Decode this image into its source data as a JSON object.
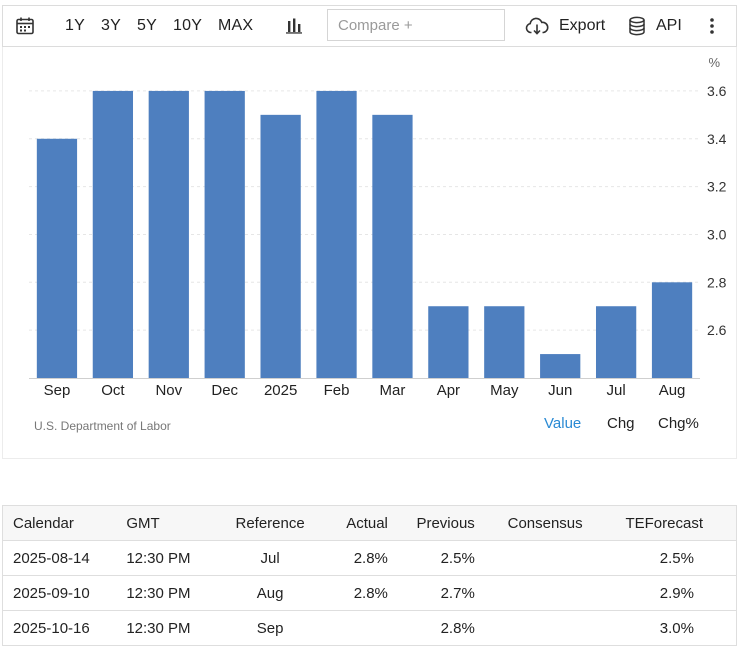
{
  "toolbar": {
    "ranges": [
      "1Y",
      "3Y",
      "5Y",
      "10Y",
      "MAX"
    ],
    "compare_placeholder": "Compare +",
    "export_label": "Export",
    "api_label": "API"
  },
  "chart_data": {
    "type": "bar",
    "categories": [
      "Sep",
      "Oct",
      "Nov",
      "Dec",
      "2025",
      "Feb",
      "Mar",
      "Apr",
      "May",
      "Jun",
      "Jul",
      "Aug"
    ],
    "values": [
      3.4,
      3.6,
      3.6,
      3.6,
      3.5,
      3.6,
      3.5,
      2.7,
      2.7,
      2.5,
      2.7,
      2.8
    ],
    "ylabel": "%",
    "ylim": [
      2.4,
      3.7
    ],
    "yticks": [
      2.6,
      2.8,
      3.0,
      3.2,
      3.4,
      3.6
    ],
    "ytick_labels": [
      "2.6",
      "2.8",
      "3.0",
      "3.2",
      "3.4",
      "3.6"
    ],
    "y_axis_position": "right",
    "grid": true,
    "bar_color": "#4e7fbf",
    "source": "U.S. Department of Labor"
  },
  "chart_tabs": [
    "Value",
    "Chg",
    "Chg%"
  ],
  "colors": {
    "active_tab": "#2a8ad4",
    "bar": "#4e7fbf"
  },
  "table": {
    "headers": [
      "Calendar",
      "GMT",
      "Reference",
      "Actual",
      "Previous",
      "Consensus",
      "TEForecast"
    ],
    "rows": [
      [
        "2025-08-14",
        "12:30 PM",
        "Jul",
        "2.8%",
        "2.5%",
        "",
        "2.5%"
      ],
      [
        "2025-09-10",
        "12:30 PM",
        "Aug",
        "2.8%",
        "2.7%",
        "",
        "2.9%"
      ],
      [
        "2025-10-16",
        "12:30 PM",
        "Sep",
        "",
        "2.8%",
        "",
        "3.0%"
      ]
    ]
  }
}
